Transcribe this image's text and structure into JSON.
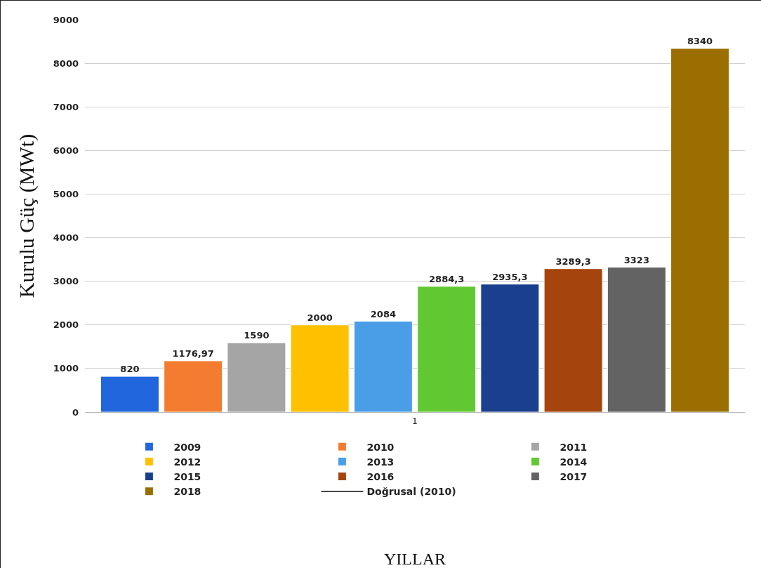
{
  "chart_data": {
    "type": "bar",
    "ylabel": "Kurulu Güç (MWt)",
    "annotations": [
      "YILLAR"
    ],
    "categories": [
      "1"
    ],
    "series": [
      {
        "name": "2009",
        "color": "#2266dd",
        "values": [
          820
        ],
        "value_labels": [
          "820"
        ]
      },
      {
        "name": "2010",
        "color": "#f47c30",
        "values": [
          1176.97
        ],
        "value_labels": [
          "1176,97"
        ]
      },
      {
        "name": "2011",
        "color": "#a5a5a5",
        "values": [
          1590
        ],
        "value_labels": [
          "1590"
        ]
      },
      {
        "name": "2012",
        "color": "#ffc000",
        "values": [
          2000
        ],
        "value_labels": [
          "2000"
        ]
      },
      {
        "name": "2013",
        "color": "#4a9ee8",
        "values": [
          2084
        ],
        "value_labels": [
          "2084"
        ]
      },
      {
        "name": "2014",
        "color": "#62c832",
        "values": [
          2884.3
        ],
        "value_labels": [
          "2884,3"
        ]
      },
      {
        "name": "2015",
        "color": "#1a3f8f",
        "values": [
          2935.3
        ],
        "value_labels": [
          "2935,3"
        ]
      },
      {
        "name": "2016",
        "color": "#a5440c",
        "values": [
          3289.3
        ],
        "value_labels": [
          "3289,3"
        ]
      },
      {
        "name": "2017",
        "color": "#636363",
        "values": [
          3323
        ],
        "value_labels": [
          "3323"
        ]
      },
      {
        "name": "2018",
        "color": "#9a6e00",
        "values": [
          8340
        ],
        "value_labels": [
          "8340"
        ]
      },
      {
        "name": "Doğrusal (2010)",
        "type": "line",
        "color": "#000000",
        "values": [
          null
        ],
        "marker": "none",
        "line_style": "solid"
      }
    ],
    "ylim": [
      0,
      9000
    ],
    "yticks": [
      0,
      1000,
      2000,
      3000,
      4000,
      5000,
      6000,
      7000,
      8000,
      9000
    ],
    "grid": "y",
    "legend": "bottom"
  }
}
